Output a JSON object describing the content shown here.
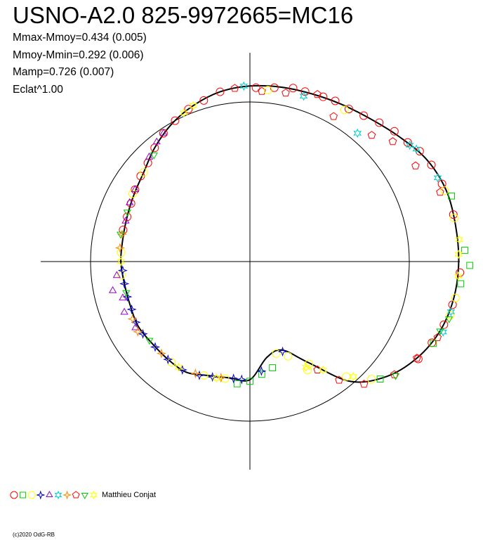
{
  "title": "USNO-A2.0 825-9972665=MC16",
  "stats": [
    "Mmax-Mmoy=0.434 (0.005)",
    "Mmoy-Mmin=0.292 (0.006)",
    "Mamp=0.726 (0.007)",
    "Eclat^1.00"
  ],
  "legend": {
    "observer": "Matthieu Conjat",
    "markers": [
      {
        "shape": "circle",
        "color": "#ff0000"
      },
      {
        "shape": "square",
        "color": "#00cc00"
      },
      {
        "shape": "circle",
        "color": "#ffff00"
      },
      {
        "shape": "star4",
        "color": "#0000cc"
      },
      {
        "shape": "triangle",
        "color": "#9900cc"
      },
      {
        "shape": "star6",
        "color": "#00cccc"
      },
      {
        "shape": "diamond",
        "color": "#ff8800"
      },
      {
        "shape": "pentagon",
        "color": "#ff0000"
      },
      {
        "shape": "triangle-down",
        "color": "#00cc00"
      },
      {
        "shape": "star6",
        "color": "#ffff00"
      }
    ]
  },
  "copyright": "(c)2020 OdG-RB",
  "chart_data": {
    "type": "scatter",
    "coordinate_system": "polar",
    "reference_circle_radius": 1.0,
    "curve": [
      {
        "angle": 0,
        "r": 1.31
      },
      {
        "angle": 10,
        "r": 1.31
      },
      {
        "angle": 20,
        "r": 1.31
      },
      {
        "angle": 30,
        "r": 1.28
      },
      {
        "angle": 40,
        "r": 1.22
      },
      {
        "angle": 50,
        "r": 1.17
      },
      {
        "angle": 60,
        "r": 1.14
      },
      {
        "angle": 70,
        "r": 1.12
      },
      {
        "angle": 80,
        "r": 1.11
      },
      {
        "angle": 90,
        "r": 1.1
      },
      {
        "angle": 100,
        "r": 1.08
      },
      {
        "angle": 110,
        "r": 1.04
      },
      {
        "angle": 120,
        "r": 0.99
      },
      {
        "angle": 130,
        "r": 0.93
      },
      {
        "angle": 140,
        "r": 0.87
      },
      {
        "angle": 150,
        "r": 0.84
      },
      {
        "angle": 160,
        "r": 0.82
      },
      {
        "angle": 170,
        "r": 0.81
      },
      {
        "angle": 180,
        "r": 0.81
      },
      {
        "angle": 190,
        "r": 0.8
      },
      {
        "angle": 200,
        "r": 0.8
      },
      {
        "angle": 210,
        "r": 0.81
      },
      {
        "angle": 220,
        "r": 0.8
      },
      {
        "angle": 230,
        "r": 0.8
      },
      {
        "angle": 240,
        "r": 0.8
      },
      {
        "angle": 250,
        "r": 0.76
      },
      {
        "angle": 260,
        "r": 0.74
      },
      {
        "angle": 270,
        "r": 0.74
      },
      {
        "angle": 280,
        "r": 0.61
      },
      {
        "angle": 290,
        "r": 0.59
      },
      {
        "angle": 300,
        "r": 0.73
      },
      {
        "angle": 310,
        "r": 0.98
      },
      {
        "angle": 320,
        "r": 1.12
      },
      {
        "angle": 330,
        "r": 1.21
      },
      {
        "angle": 340,
        "r": 1.27
      },
      {
        "angle": 350,
        "r": 1.3
      }
    ],
    "series": [
      {
        "marker": "circle",
        "color": "#ff0000",
        "points": [
          {
            "angle": 88,
            "r": 1.09
          },
          {
            "angle": 82,
            "r": 1.1
          },
          {
            "angle": 76,
            "r": 1.12
          },
          {
            "angle": 72,
            "r": 1.12
          },
          {
            "angle": 66,
            "r": 1.13
          },
          {
            "angle": 62,
            "r": 1.14
          },
          {
            "angle": 57,
            "r": 1.14
          },
          {
            "angle": 52,
            "r": 1.16
          },
          {
            "angle": 47,
            "r": 1.19
          },
          {
            "angle": 42,
            "r": 1.22
          },
          {
            "angle": 37,
            "r": 1.24
          },
          {
            "angle": 33,
            "r": 1.27
          },
          {
            "angle": 28,
            "r": 1.29
          },
          {
            "angle": 22,
            "r": 1.3
          },
          {
            "angle": 13,
            "r": 1.31
          },
          {
            "angle": 357,
            "r": 1.32
          },
          {
            "angle": 348,
            "r": 1.3
          },
          {
            "angle": 342,
            "r": 1.28
          },
          {
            "angle": 336,
            "r": 1.25
          },
          {
            "angle": 330,
            "r": 1.22
          },
          {
            "angle": 100,
            "r": 1.08
          },
          {
            "angle": 106,
            "r": 1.05
          },
          {
            "angle": 112,
            "r": 1.03
          },
          {
            "angle": 118,
            "r": 1.0
          },
          {
            "angle": 124,
            "r": 0.97
          },
          {
            "angle": 130,
            "r": 0.93
          },
          {
            "angle": 136,
            "r": 0.89
          },
          {
            "angle": 142,
            "r": 0.87
          },
          {
            "angle": 148,
            "r": 0.85
          },
          {
            "angle": 154,
            "r": 0.83
          },
          {
            "angle": 160,
            "r": 0.82
          },
          {
            "angle": 166,
            "r": 0.82
          }
        ]
      },
      {
        "marker": "pentagon",
        "color": "#ff0000",
        "points": [
          {
            "angle": 86,
            "r": 1.07
          },
          {
            "angle": 78,
            "r": 1.08
          },
          {
            "angle": 60,
            "r": 1.05
          },
          {
            "angle": 46,
            "r": 1.1
          },
          {
            "angle": 30,
            "r": 1.2
          },
          {
            "angle": 20,
            "r": 1.27
          },
          {
            "angle": 338,
            "r": 1.27
          },
          {
            "angle": 330,
            "r": 1.21
          },
          {
            "angle": 322,
            "r": 1.15
          },
          {
            "angle": 313,
            "r": 1.05
          },
          {
            "angle": 307,
            "r": 0.93
          },
          {
            "angle": 302,
            "r": 0.8
          },
          {
            "angle": 68,
            "r": 1.13
          },
          {
            "angle": 40,
            "r": 1.17
          },
          {
            "angle": 95,
            "r": 1.09
          }
        ]
      },
      {
        "marker": "square",
        "color": "#00cc00",
        "points": [
          {
            "angle": 3,
            "r": 1.35
          },
          {
            "angle": 359,
            "r": 1.38
          },
          {
            "angle": 354,
            "r": 1.33
          },
          {
            "angle": 270,
            "r": 0.75
          },
          {
            "angle": 276,
            "r": 0.71
          },
          {
            "angle": 282,
            "r": 0.68
          },
          {
            "angle": 318,
            "r": 1.1
          },
          {
            "angle": 336,
            "r": 1.26
          },
          {
            "angle": 18,
            "r": 1.33
          },
          {
            "angle": 264,
            "r": 0.77
          }
        ]
      },
      {
        "marker": "circle",
        "color": "#ffff00",
        "points": [
          {
            "angle": 84,
            "r": 1.08
          },
          {
            "angle": 58,
            "r": 1.12
          },
          {
            "angle": 350,
            "r": 1.31
          },
          {
            "angle": 345,
            "r": 1.3
          },
          {
            "angle": 20,
            "r": 1.3
          },
          {
            "angle": 12,
            "r": 1.31
          },
          {
            "angle": 298,
            "r": 0.77
          },
          {
            "angle": 292,
            "r": 0.64
          },
          {
            "angle": 286,
            "r": 0.6
          },
          {
            "angle": 300,
            "r": 0.74
          },
          {
            "angle": 310,
            "r": 0.94
          },
          {
            "angle": 316,
            "r": 1.06
          },
          {
            "angle": 150,
            "r": 0.85
          },
          {
            "angle": 140,
            "r": 0.87
          },
          {
            "angle": 176,
            "r": 0.81
          },
          {
            "angle": 186,
            "r": 0.81
          },
          {
            "angle": 232,
            "r": 0.8
          },
          {
            "angle": 248,
            "r": 0.77
          },
          {
            "angle": 258,
            "r": 0.75
          }
        ]
      },
      {
        "marker": "star4",
        "color": "#0000cc",
        "points": [
          {
            "angle": 184,
            "r": 0.8
          },
          {
            "angle": 190,
            "r": 0.8
          },
          {
            "angle": 196,
            "r": 0.8
          },
          {
            "angle": 202,
            "r": 0.8
          },
          {
            "angle": 208,
            "r": 0.81
          },
          {
            "angle": 214,
            "r": 0.81
          },
          {
            "angle": 222,
            "r": 0.8
          },
          {
            "angle": 230,
            "r": 0.8
          },
          {
            "angle": 238,
            "r": 0.8
          },
          {
            "angle": 246,
            "r": 0.78
          },
          {
            "angle": 252,
            "r": 0.76
          },
          {
            "angle": 262,
            "r": 0.74
          },
          {
            "angle": 266,
            "r": 0.74
          },
          {
            "angle": 276,
            "r": 0.69
          },
          {
            "angle": 290,
            "r": 0.6
          }
        ]
      },
      {
        "marker": "triangle",
        "color": "#9900cc",
        "points": [
          {
            "angle": 128,
            "r": 0.95
          },
          {
            "angle": 124,
            "r": 0.97
          },
          {
            "angle": 148,
            "r": 0.85
          },
          {
            "angle": 154,
            "r": 0.84
          },
          {
            "angle": 162,
            "r": 0.82
          },
          {
            "angle": 186,
            "r": 0.84
          },
          {
            "angle": 192,
            "r": 0.88
          },
          {
            "angle": 196,
            "r": 0.83
          },
          {
            "angle": 202,
            "r": 0.85
          },
          {
            "angle": 210,
            "r": 0.83
          },
          {
            "angle": 134,
            "r": 0.91
          }
        ]
      },
      {
        "marker": "star6",
        "color": "#00cccc",
        "points": [
          {
            "angle": 92,
            "r": 1.1
          },
          {
            "angle": 72,
            "r": 1.09
          },
          {
            "angle": 50,
            "r": 1.05
          },
          {
            "angle": 36,
            "r": 1.24
          },
          {
            "angle": 34,
            "r": 1.26
          },
          {
            "angle": 24,
            "r": 1.29
          },
          {
            "angle": 340,
            "r": 1.29
          },
          {
            "angle": 346,
            "r": 1.3
          }
        ]
      },
      {
        "marker": "diamond",
        "color": "#ff8800",
        "points": [
          {
            "angle": 168,
            "r": 0.82
          },
          {
            "angle": 174,
            "r": 0.82
          },
          {
            "angle": 212,
            "r": 0.83
          },
          {
            "angle": 206,
            "r": 0.82
          },
          {
            "angle": 256,
            "r": 0.75
          },
          {
            "angle": 244,
            "r": 0.78
          },
          {
            "angle": 226,
            "r": 0.8
          }
        ]
      },
      {
        "marker": "triangle-down",
        "color": "#00cc00",
        "points": [
          {
            "angle": 132,
            "r": 0.9
          },
          {
            "angle": 158,
            "r": 0.83
          },
          {
            "angle": 168,
            "r": 0.83
          },
          {
            "angle": 194,
            "r": 0.8
          },
          {
            "angle": 218,
            "r": 0.8
          },
          {
            "angle": 340,
            "r": 1.27
          },
          {
            "angle": 344,
            "r": 1.3
          },
          {
            "angle": 322,
            "r": 1.16
          }
        ]
      },
      {
        "marker": "star6",
        "color": "#ffff00",
        "points": [
          {
            "angle": 114,
            "r": 1.02
          },
          {
            "angle": 180,
            "r": 0.81
          },
          {
            "angle": 236,
            "r": 0.8
          },
          {
            "angle": 254,
            "r": 0.76
          },
          {
            "angle": 298,
            "r": 0.75
          },
          {
            "angle": 304,
            "r": 0.82
          },
          {
            "angle": 312,
            "r": 0.97
          },
          {
            "angle": 356,
            "r": 1.31
          },
          {
            "angle": 2,
            "r": 1.31
          },
          {
            "angle": 6,
            "r": 1.32
          },
          {
            "angle": 110,
            "r": 1.04
          }
        ]
      }
    ]
  }
}
